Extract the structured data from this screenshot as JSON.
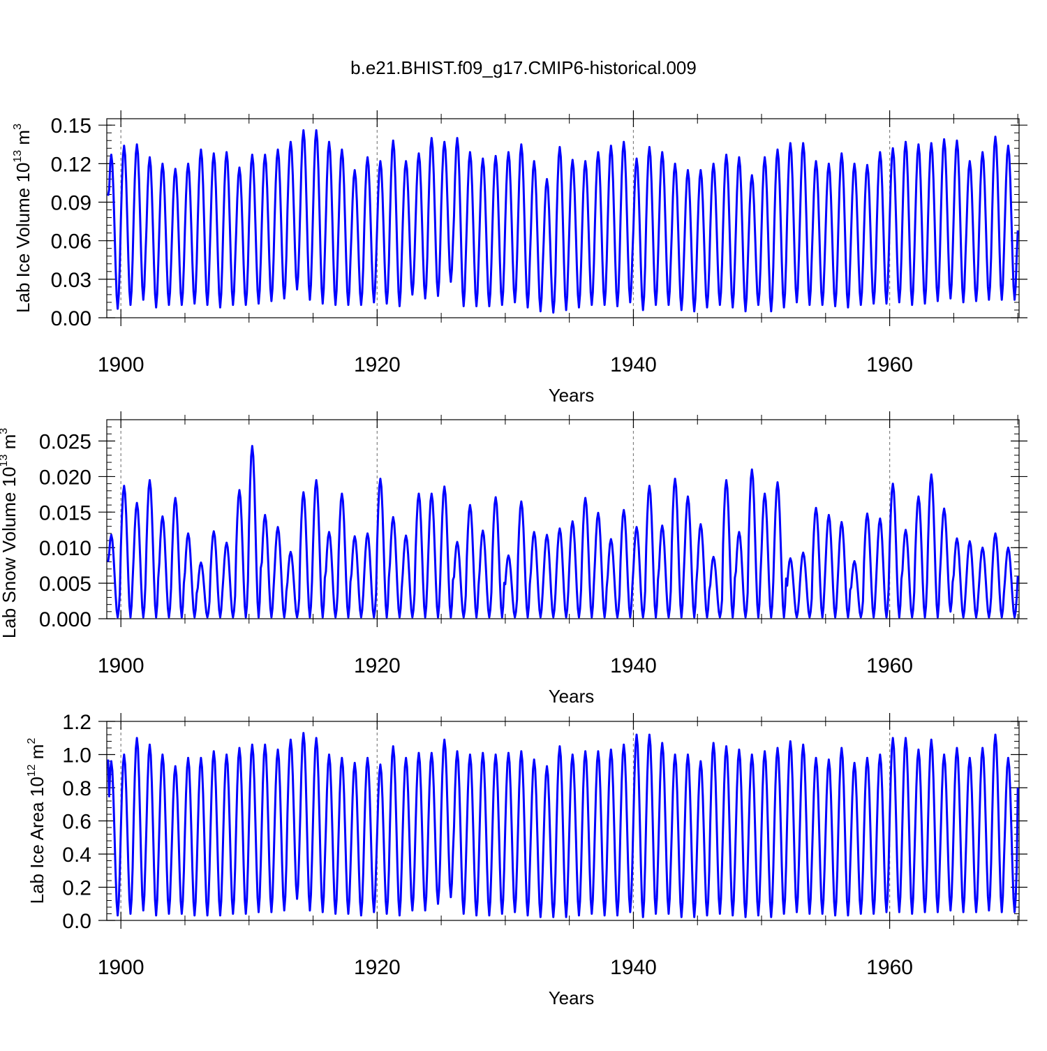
{
  "title": "b.e21.BHIST.f09_g17.CMIP6-historical.009",
  "colors": {
    "series": "#0000ff",
    "axes": "#000000",
    "grid": "#808080",
    "background": "#ffffff"
  },
  "chart_data": [
    {
      "type": "line",
      "xlabel": "Years",
      "ylabel_main": "Lab Ice Volume 10",
      "ylabel_exp": "13",
      "ylabel_unit": "m",
      "ylabel_unit_exp": "3",
      "xlim": [
        1898.9,
        1970.1
      ],
      "ylim": [
        0,
        0.155
      ],
      "yticks": [
        0.0,
        0.03,
        0.06,
        0.09,
        0.12,
        0.15
      ],
      "ytick_labels": [
        "0.00",
        "0.03",
        "0.06",
        "0.09",
        "0.12",
        "0.15"
      ],
      "xticks": [
        1900,
        1920,
        1940,
        1960
      ],
      "xtick_labels": [
        "1900",
        "1920",
        "1940",
        "1960"
      ],
      "x_minor_step": 5,
      "y_minor_step": 0.006,
      "grid_x": [
        1900,
        1920,
        1940,
        1960
      ],
      "series": [
        {
          "name": "Lab Ice Volume",
          "start_year": 1899,
          "start_value": 0.095,
          "end_value": 0.068,
          "annual_max": [
            0.127,
            0.134,
            0.135,
            0.125,
            0.12,
            0.116,
            0.12,
            0.131,
            0.128,
            0.129,
            0.117,
            0.127,
            0.127,
            0.131,
            0.137,
            0.146,
            0.146,
            0.137,
            0.131,
            0.115,
            0.125,
            0.122,
            0.138,
            0.122,
            0.128,
            0.14,
            0.137,
            0.14,
            0.129,
            0.124,
            0.126,
            0.129,
            0.135,
            0.122,
            0.108,
            0.133,
            0.123,
            0.122,
            0.129,
            0.134,
            0.137,
            0.124,
            0.133,
            0.129,
            0.12,
            0.115,
            0.115,
            0.12,
            0.127,
            0.125,
            0.111,
            0.125,
            0.131,
            0.136,
            0.136,
            0.122,
            0.12,
            0.128,
            0.12,
            0.119,
            0.129,
            0.132,
            0.137,
            0.135,
            0.136,
            0.139,
            0.138,
            0.122,
            0.129,
            0.141,
            0.134
          ],
          "annual_min": [
            0.007,
            0.01,
            0.014,
            0.008,
            0.01,
            0.01,
            0.011,
            0.01,
            0.008,
            0.01,
            0.01,
            0.011,
            0.013,
            0.015,
            0.022,
            0.014,
            0.011,
            0.01,
            0.01,
            0.01,
            0.012,
            0.011,
            0.009,
            0.018,
            0.015,
            0.017,
            0.028,
            0.009,
            0.009,
            0.009,
            0.01,
            0.012,
            0.008,
            0.005,
            0.004,
            0.006,
            0.008,
            0.01,
            0.01,
            0.009,
            0.012,
            0.006,
            0.01,
            0.01,
            0.006,
            0.005,
            0.008,
            0.01,
            0.008,
            0.005,
            0.01,
            0.005,
            0.008,
            0.012,
            0.01,
            0.01,
            0.009,
            0.008,
            0.01,
            0.011,
            0.011,
            0.012,
            0.01,
            0.011,
            0.013,
            0.015,
            0.012,
            0.013,
            0.014,
            0.014,
            0.014
          ]
        }
      ]
    },
    {
      "type": "line",
      "xlabel": "Years",
      "ylabel_main": "Lab Snow Volume 10",
      "ylabel_exp": "13",
      "ylabel_unit": "m",
      "ylabel_unit_exp": "3",
      "xlim": [
        1898.9,
        1970.1
      ],
      "ylim": [
        0,
        0.028
      ],
      "yticks": [
        0.0,
        0.005,
        0.01,
        0.015,
        0.02,
        0.025
      ],
      "ytick_labels": [
        "0.000",
        "0.005",
        "0.010",
        "0.015",
        "0.020",
        "0.025"
      ],
      "xticks": [
        1900,
        1920,
        1940,
        1960
      ],
      "xtick_labels": [
        "1900",
        "1920",
        "1940",
        "1960"
      ],
      "x_minor_step": 5,
      "y_minor_step": 0.001,
      "grid_x": [
        1900,
        1920,
        1940,
        1960
      ],
      "series": [
        {
          "name": "Lab Snow Volume",
          "start_year": 1899,
          "start_value": 0.008,
          "end_value": 0.006,
          "annual_max": [
            0.0118,
            0.0187,
            0.0163,
            0.0195,
            0.0144,
            0.017,
            0.012,
            0.0079,
            0.0123,
            0.0107,
            0.0181,
            0.0243,
            0.0146,
            0.0129,
            0.0094,
            0.0178,
            0.0195,
            0.0122,
            0.0176,
            0.0116,
            0.012,
            0.0197,
            0.0143,
            0.0117,
            0.0176,
            0.0176,
            0.0186,
            0.0108,
            0.016,
            0.0124,
            0.0171,
            0.0089,
            0.0165,
            0.0122,
            0.0118,
            0.0127,
            0.0137,
            0.017,
            0.0149,
            0.0112,
            0.0153,
            0.0129,
            0.0187,
            0.0131,
            0.0197,
            0.0172,
            0.0133,
            0.0087,
            0.0195,
            0.0122,
            0.021,
            0.0176,
            0.0192,
            0.0085,
            0.0093,
            0.0156,
            0.0146,
            0.0136,
            0.0081,
            0.0148,
            0.0141,
            0.019,
            0.0125,
            0.0172,
            0.0203,
            0.0155,
            0.0113,
            0.0109,
            0.01,
            0.012,
            0.01
          ],
          "annual_min": [
            0.0002,
            0.0002,
            0.0002,
            0.0002,
            0.0002,
            0.0002,
            0.0002,
            0.0002,
            0.0002,
            0.0002,
            0.0002,
            0.0002,
            0.0002,
            0.0002,
            0.0002,
            0.0002,
            0.0002,
            0.0002,
            0.0002,
            0.0002,
            0.0002,
            0.0002,
            0.0002,
            0.0002,
            0.0002,
            0.0002,
            0.0002,
            0.0002,
            0.0002,
            0.0002,
            0.0002,
            0.0002,
            0.0002,
            0.0002,
            0.0002,
            0.0002,
            0.0002,
            0.0002,
            0.0002,
            0.0002,
            0.0002,
            0.0002,
            0.0002,
            0.0002,
            0.0002,
            0.0002,
            0.0002,
            0.0002,
            0.0002,
            0.0002,
            0.0002,
            0.0002,
            0.0002,
            0.0002,
            0.0002,
            0.0002,
            0.0002,
            0.0002,
            0.0002,
            0.0002,
            0.0002,
            0.0002,
            0.0002,
            0.0002,
            0.0002,
            0.001,
            0.0002,
            0.0002,
            0.0002,
            0.0002,
            0.0002
          ]
        }
      ]
    },
    {
      "type": "line",
      "xlabel": "Years",
      "ylabel_main": "Lab Ice Area 10",
      "ylabel_exp": "12",
      "ylabel_unit": "m",
      "ylabel_unit_exp": "2",
      "xlim": [
        1898.9,
        1970.1
      ],
      "ylim": [
        0,
        1.2
      ],
      "yticks": [
        0.0,
        0.2,
        0.4,
        0.6,
        0.8,
        1.0,
        1.2
      ],
      "ytick_labels": [
        "0.0",
        "0.2",
        "0.4",
        "0.6",
        "0.8",
        "1.0",
        "1.2"
      ],
      "xticks": [
        1900,
        1920,
        1940,
        1960
      ],
      "xtick_labels": [
        "1900",
        "1920",
        "1940",
        "1960"
      ],
      "x_minor_step": 5,
      "y_minor_step": 0.04,
      "grid_x": [
        1900,
        1920,
        1940,
        1960
      ],
      "series": [
        {
          "name": "Lab Ice Area",
          "start_year": 1899,
          "start_value": 0.97,
          "end_value": 0.8,
          "annual_max": [
            0.96,
            1.0,
            1.1,
            1.06,
            1.0,
            0.93,
            0.98,
            0.98,
            1.02,
            1.0,
            1.04,
            1.06,
            1.06,
            1.03,
            1.09,
            1.13,
            1.1,
            1.0,
            0.98,
            0.95,
            0.98,
            0.94,
            1.05,
            0.98,
            1.01,
            1.01,
            1.09,
            1.02,
            1.0,
            1.01,
            1.0,
            1.01,
            1.02,
            0.97,
            0.93,
            1.05,
            1.0,
            1.02,
            1.02,
            1.03,
            1.06,
            1.12,
            1.12,
            1.07,
            1.0,
            1.0,
            0.96,
            1.07,
            1.05,
            1.03,
            1.0,
            1.02,
            1.04,
            1.08,
            1.06,
            0.98,
            0.97,
            1.04,
            0.95,
            0.98,
            1.0,
            1.1,
            1.1,
            1.03,
            1.09,
            1.0,
            1.04,
            0.98,
            1.04,
            1.12,
            0.98
          ],
          "annual_min": [
            0.03,
            0.04,
            0.06,
            0.03,
            0.04,
            0.04,
            0.03,
            0.03,
            0.03,
            0.04,
            0.04,
            0.05,
            0.05,
            0.06,
            0.13,
            0.06,
            0.05,
            0.04,
            0.04,
            0.03,
            0.05,
            0.04,
            0.03,
            0.06,
            0.06,
            0.1,
            0.14,
            0.04,
            0.03,
            0.03,
            0.04,
            0.05,
            0.03,
            0.02,
            0.02,
            0.02,
            0.03,
            0.04,
            0.03,
            0.03,
            0.05,
            0.02,
            0.04,
            0.04,
            0.02,
            0.02,
            0.03,
            0.04,
            0.03,
            0.02,
            0.03,
            0.02,
            0.04,
            0.05,
            0.04,
            0.04,
            0.03,
            0.03,
            0.04,
            0.04,
            0.05,
            0.05,
            0.04,
            0.05,
            0.05,
            0.06,
            0.05,
            0.05,
            0.06,
            0.05,
            0.05
          ]
        }
      ]
    }
  ]
}
